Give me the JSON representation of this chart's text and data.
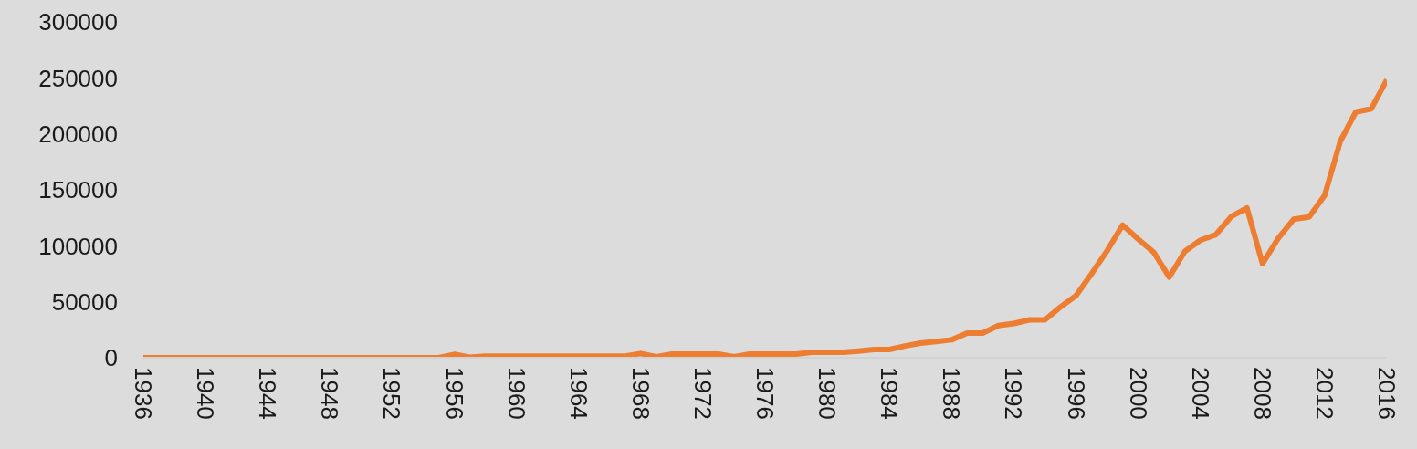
{
  "chart_data": {
    "type": "line",
    "x": [
      1936,
      1937,
      1938,
      1939,
      1940,
      1941,
      1942,
      1943,
      1944,
      1945,
      1946,
      1947,
      1948,
      1949,
      1950,
      1951,
      1952,
      1953,
      1954,
      1955,
      1956,
      1957,
      1958,
      1959,
      1960,
      1961,
      1962,
      1963,
      1964,
      1965,
      1966,
      1967,
      1968,
      1969,
      1970,
      1971,
      1972,
      1973,
      1974,
      1975,
      1976,
      1977,
      1978,
      1979,
      1980,
      1981,
      1982,
      1983,
      1984,
      1985,
      1986,
      1987,
      1988,
      1989,
      1990,
      1991,
      1992,
      1993,
      1994,
      1995,
      1996,
      1997,
      1998,
      1999,
      2000,
      2001,
      2002,
      2003,
      2004,
      2005,
      2006,
      2007,
      2008,
      2009,
      2010,
      2011,
      2012,
      2013,
      2014,
      2015,
      2016
    ],
    "series": [
      {
        "color": "#ed7d31",
        "values": [
          0,
          0,
          0,
          0,
          0,
          0,
          0,
          0,
          0,
          0,
          0,
          0,
          0,
          0,
          0,
          0,
          0,
          0,
          0,
          0,
          3000,
          500,
          1500,
          1500,
          1500,
          1500,
          1500,
          1500,
          1500,
          1500,
          1500,
          1500,
          3800,
          800,
          3300,
          3300,
          3300,
          3300,
          800,
          3300,
          3300,
          3300,
          3300,
          4900,
          4900,
          4900,
          6000,
          7300,
          7300,
          10500,
          13000,
          14500,
          16000,
          22000,
          22000,
          28700,
          30600,
          33800,
          33800,
          45300,
          55400,
          75000,
          95500,
          118500,
          106000,
          94200,
          72000,
          95000,
          105000,
          110000,
          126300,
          133700,
          84000,
          106500,
          123700,
          125700,
          145200,
          193200,
          219500,
          222400,
          248200
        ]
      }
    ],
    "xlim": [
      1936,
      2016
    ],
    "xticks": [
      1936,
      1940,
      1944,
      1948,
      1952,
      1956,
      1960,
      1964,
      1968,
      1972,
      1976,
      1980,
      1984,
      1988,
      1992,
      1996,
      2000,
      2004,
      2008,
      2012,
      2016
    ],
    "ylim": [
      0,
      300000
    ],
    "yticks": [
      0,
      50000,
      100000,
      150000,
      200000,
      250000,
      300000
    ],
    "grid": false,
    "legend": false,
    "marker": "none",
    "line_style": "solid"
  }
}
